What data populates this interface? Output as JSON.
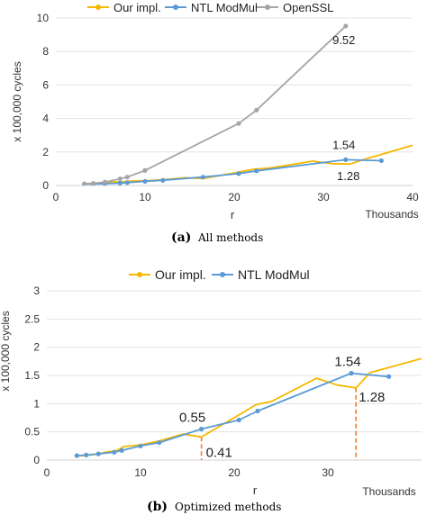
{
  "chart_data": [
    {
      "type": "line",
      "caption_label": "(a)",
      "caption_text": "All methods",
      "xlabel": "r",
      "x_unit": "Thousands",
      "ylabel": "x 100,000 cycles",
      "xlim": [
        0,
        40
      ],
      "ylim": [
        0,
        10
      ],
      "x_ticks": [
        0,
        10,
        20,
        30,
        40
      ],
      "y_ticks": [
        0,
        2,
        4,
        6,
        8,
        10
      ],
      "grid": "horizontal",
      "legend_position": "top",
      "series": [
        {
          "name": "Our impl.",
          "color": "#f5b800",
          "marker": "none",
          "x": [
            3,
            4,
            5.2,
            6.3,
            7.5,
            8.2,
            10,
            12,
            14.5,
            16.5,
            20.5,
            22.3,
            24,
            28.8,
            31,
            33,
            34.5,
            40
          ],
          "y": [
            0.1,
            0.12,
            0.15,
            0.2,
            0.22,
            0.26,
            0.28,
            0.34,
            0.46,
            0.41,
            0.8,
            0.98,
            1.04,
            1.45,
            1.3,
            1.28,
            1.55,
            2.4
          ]
        },
        {
          "name": "NTL ModMul",
          "color": "#5b9bd5",
          "marker": "dot",
          "x": [
            3.2,
            4.2,
            5.5,
            7.2,
            8,
            10,
            12,
            16.5,
            20.5,
            22.5,
            32.5,
            36.5
          ],
          "y": [
            0.08,
            0.09,
            0.11,
            0.14,
            0.17,
            0.25,
            0.31,
            0.5,
            0.71,
            0.87,
            1.54,
            1.48
          ]
        },
        {
          "name": "OpenSSL",
          "color": "#a5a5a5",
          "marker": "dot",
          "x": [
            3.2,
            4.2,
            5.5,
            7.2,
            8,
            10,
            20.5,
            22.5,
            32.5
          ],
          "y": [
            0.1,
            0.13,
            0.2,
            0.4,
            0.5,
            0.9,
            3.7,
            4.5,
            9.52
          ]
        }
      ],
      "annotations": [
        {
          "text": "9.52",
          "x": 32.5,
          "y": 9.52
        },
        {
          "text": "1.54",
          "x": 32.5,
          "y": 1.54
        },
        {
          "text": "1.28",
          "x": 33,
          "y": 1.28
        }
      ]
    },
    {
      "type": "line",
      "caption_label": "(b)",
      "caption_text": "Optimized methods",
      "xlabel": "r",
      "x_unit": "Thousands",
      "ylabel": "x 100,000 cycles",
      "xlim": [
        0,
        40
      ],
      "ylim": [
        0,
        3
      ],
      "x_ticks": [
        0,
        10,
        20,
        30
      ],
      "y_ticks": [
        0,
        0.5,
        1,
        1.5,
        2,
        2.5,
        3
      ],
      "y_tick_labels": [
        "0",
        "0.5",
        "1",
        "1.5",
        "2",
        "2.5",
        "3"
      ],
      "grid": "horizontal",
      "legend_position": "top",
      "series": [
        {
          "name": "Our impl.",
          "color": "#f5b800",
          "marker": "none",
          "x": [
            3,
            4,
            5.2,
            6.3,
            7.5,
            8.2,
            10,
            12,
            14.5,
            16.5,
            20.5,
            22.3,
            24,
            28.8,
            31,
            33,
            34.5,
            40
          ],
          "y": [
            0.07,
            0.08,
            0.1,
            0.14,
            0.17,
            0.24,
            0.27,
            0.34,
            0.46,
            0.41,
            0.8,
            0.98,
            1.04,
            1.45,
            1.33,
            1.28,
            1.55,
            1.8
          ]
        },
        {
          "name": "NTL ModMul",
          "color": "#5b9bd5",
          "marker": "dot",
          "x": [
            3.2,
            4.2,
            5.5,
            7.2,
            8,
            10,
            12,
            16.5,
            20.5,
            22.5,
            32.5,
            36.5
          ],
          "y": [
            0.08,
            0.09,
            0.11,
            0.14,
            0.17,
            0.25,
            0.31,
            0.55,
            0.71,
            0.87,
            1.54,
            1.48
          ]
        }
      ],
      "annotations": [
        {
          "text": "0.55",
          "x": 16.5,
          "y": 0.55
        },
        {
          "text": "0.41",
          "x": 16.5,
          "y": 0.41
        },
        {
          "text": "1.54",
          "x": 32.5,
          "y": 1.54
        },
        {
          "text": "1.28",
          "x": 33,
          "y": 1.28
        }
      ],
      "drop_lines": [
        {
          "x": 16.5,
          "y": 0.41,
          "color": "#ed7d31"
        },
        {
          "x": 33,
          "y": 1.28,
          "color": "#ed7d31"
        }
      ]
    }
  ]
}
